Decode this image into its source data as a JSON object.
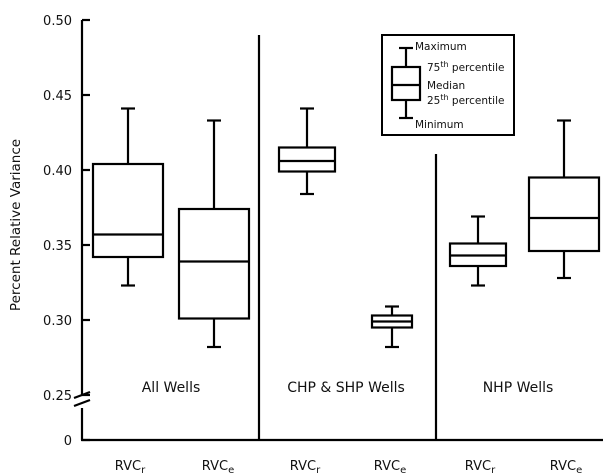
{
  "chart_data": {
    "type": "box",
    "ylabel": "Percent Relative Variance",
    "yticks": [
      "0.50",
      "0.45",
      "0.40",
      "0.35",
      "0.30",
      "0.25",
      "0"
    ],
    "ylim": [
      0.25,
      0.5
    ],
    "axis_break": "between 0 and 0.25",
    "groups": [
      {
        "label": "All Wells",
        "boxes": [
          {
            "category": "RVC",
            "subscript": "r",
            "min": 0.323,
            "q1": 0.342,
            "median": 0.357,
            "q3": 0.404,
            "max": 0.441
          },
          {
            "category": "RVC",
            "subscript": "e",
            "min": 0.282,
            "q1": 0.301,
            "median": 0.339,
            "q3": 0.374,
            "max": 0.433
          }
        ]
      },
      {
        "label": "CHP & SHP Wells",
        "boxes": [
          {
            "category": "RVC",
            "subscript": "r",
            "min": 0.384,
            "q1": 0.399,
            "median": 0.406,
            "q3": 0.415,
            "max": 0.441
          },
          {
            "category": "RVC",
            "subscript": "e",
            "min": 0.282,
            "q1": 0.295,
            "median": 0.299,
            "q3": 0.303,
            "max": 0.309
          }
        ]
      },
      {
        "label": "NHP Wells",
        "boxes": [
          {
            "category": "RVC",
            "subscript": "r",
            "min": 0.323,
            "q1": 0.336,
            "median": 0.343,
            "q3": 0.351,
            "max": 0.369
          },
          {
            "category": "RVC",
            "subscript": "e",
            "min": 0.328,
            "q1": 0.346,
            "median": 0.368,
            "q3": 0.395,
            "max": 0.433
          }
        ]
      }
    ],
    "legend": {
      "position": "top-center",
      "maximum": "Maximum",
      "q3_base": "75",
      "q3_sup": "th",
      "q3_rest": " percentile",
      "median": "Median",
      "q1_base": "25",
      "q1_sup": "th",
      "q1_rest": " percentile",
      "minimum": "Minimum"
    }
  }
}
